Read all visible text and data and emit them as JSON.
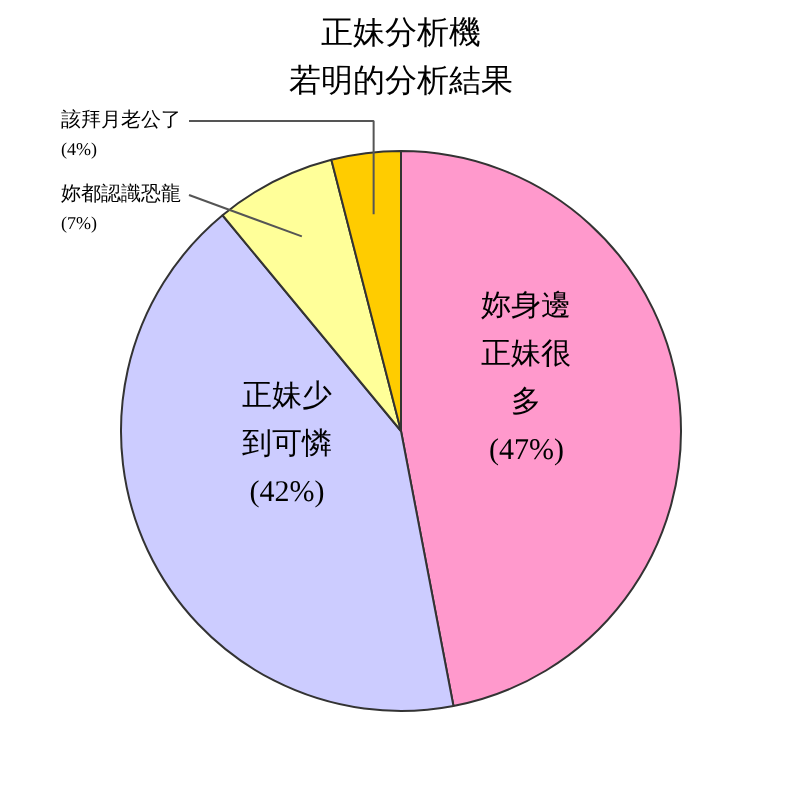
{
  "chart_data": {
    "type": "pie",
    "title": "正妹分析機",
    "subtitle": "若明的分析結果",
    "categories": [
      "妳身邊正妹很多",
      "正妹少到可憐",
      "妳都認識恐龍",
      "該拜月老公了"
    ],
    "values": [
      47,
      42,
      7,
      4
    ],
    "colors": [
      "#ff99cc",
      "#ccccff",
      "#ffff99",
      "#ffcc00"
    ],
    "value_labels": [
      "(47%)",
      "(42%)",
      "(7%)",
      "(4%)"
    ]
  }
}
